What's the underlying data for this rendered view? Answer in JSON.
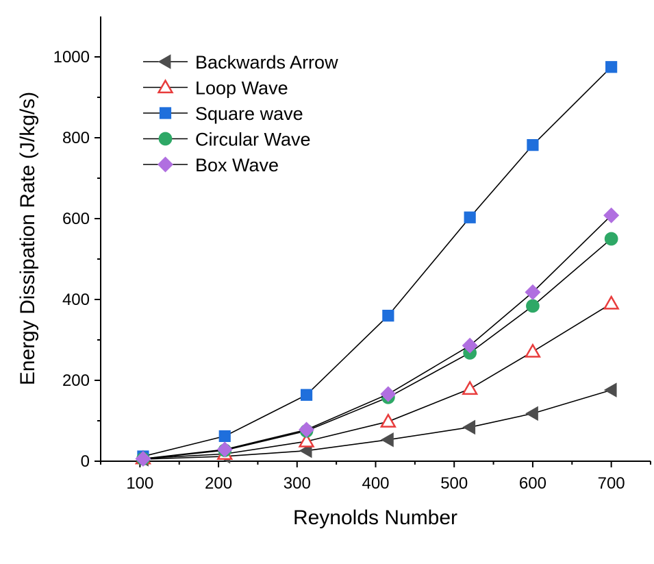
{
  "chart_data": {
    "type": "line",
    "title": "",
    "xlabel": "Reynolds Number",
    "ylabel": "Energy Dissipation Rate (J/kg/s)",
    "xlim": [
      50,
      750
    ],
    "ylim": [
      0,
      1100
    ],
    "xticks": [
      100,
      200,
      300,
      400,
      500,
      600,
      700
    ],
    "yticks": [
      0,
      200,
      400,
      600,
      800,
      1000
    ],
    "grid": false,
    "legend_position": "top-left",
    "series": [
      {
        "name": "Backwards Arrow",
        "marker": "triangle-left",
        "color": "#4d4d4d",
        "filled": true,
        "x": [
          104,
          208,
          312,
          416,
          520,
          600,
          700
        ],
        "y": [
          5,
          12,
          26,
          53,
          84,
          118,
          176
        ]
      },
      {
        "name": "Loop Wave",
        "marker": "triangle-up",
        "color": "#e83c3c",
        "filled": false,
        "x": [
          104,
          208,
          312,
          416,
          520,
          600,
          700
        ],
        "y": [
          7,
          18,
          49,
          98,
          179,
          271,
          390
        ]
      },
      {
        "name": "Square wave",
        "marker": "square",
        "color": "#1f6fdc",
        "filled": true,
        "x": [
          104,
          208,
          312,
          416,
          520,
          600,
          700
        ],
        "y": [
          12,
          62,
          164,
          360,
          603,
          782,
          975
        ]
      },
      {
        "name": "Circular Wave",
        "marker": "circle",
        "color": "#2ea866",
        "filled": true,
        "x": [
          104,
          208,
          312,
          416,
          520,
          600,
          700
        ],
        "y": [
          6,
          27,
          75,
          158,
          268,
          384,
          550
        ]
      },
      {
        "name": "Box Wave",
        "marker": "diamond",
        "color": "#b06fe0",
        "filled": true,
        "x": [
          104,
          208,
          312,
          416,
          520,
          600,
          700
        ],
        "y": [
          6,
          29,
          78,
          166,
          286,
          418,
          608
        ]
      }
    ]
  }
}
